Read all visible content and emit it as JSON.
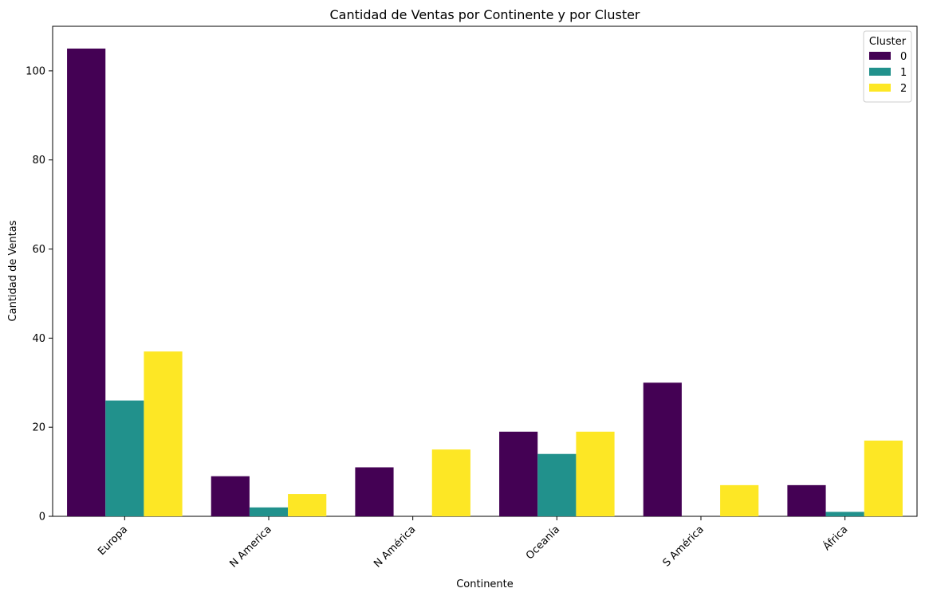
{
  "chart_data": {
    "type": "bar",
    "title": "Cantidad de Ventas por Continente y por Cluster",
    "xlabel": "Continente",
    "ylabel": "Cantidad de Ventas",
    "categories": [
      "Europa",
      "N America",
      "N América",
      "Oceanía",
      "S América",
      "África"
    ],
    "series": [
      {
        "name": "0",
        "color": "#440154",
        "values": [
          105,
          9,
          11,
          19,
          30,
          7
        ]
      },
      {
        "name": "1",
        "color": "#21918c",
        "values": [
          26,
          2,
          0,
          14,
          0,
          1
        ]
      },
      {
        "name": "2",
        "color": "#fde725",
        "values": [
          37,
          5,
          15,
          19,
          7,
          17
        ]
      }
    ],
    "ylim": [
      0,
      110
    ],
    "yticks": [
      0,
      20,
      40,
      60,
      80,
      100
    ],
    "grid": false,
    "legend": {
      "title": "Cluster",
      "position": "top-right"
    }
  }
}
